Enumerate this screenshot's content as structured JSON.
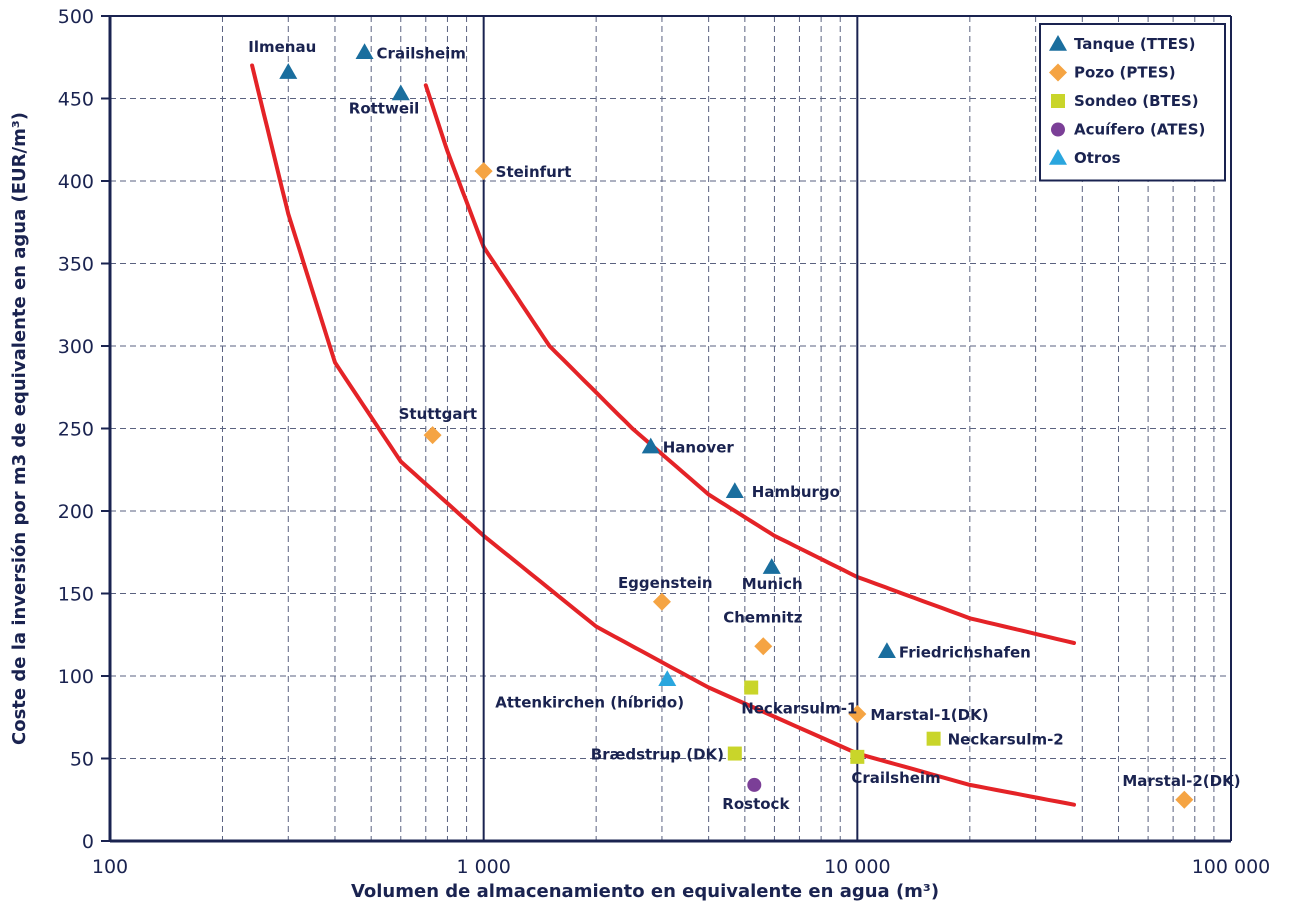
{
  "chart_data": {
    "type": "scatter",
    "title": "",
    "xlabel": "Volumen de almacenamiento en equivalente en agua (m³)",
    "ylabel": "Coste de la inversión por m3 de equivalente en agua (EUR/m³)",
    "xscale": "log",
    "xlim": [
      100,
      100000
    ],
    "ylim": [
      0,
      500
    ],
    "x_ticks": [
      100,
      1000,
      10000,
      100000
    ],
    "x_tick_labels": [
      "100",
      "1 000",
      "10 000",
      "100 000"
    ],
    "y_ticks": [
      0,
      50,
      100,
      150,
      200,
      250,
      300,
      350,
      400,
      450,
      500
    ],
    "y_tick_labels": [
      "0",
      "50",
      "100",
      "150",
      "200",
      "250",
      "300",
      "350",
      "400",
      "450",
      "500"
    ],
    "grid": true,
    "legend_position": "top-right",
    "series": [
      {
        "name": "Tanque (TTES)",
        "marker": "triangle",
        "color": "#1a6e9e",
        "points": [
          {
            "x": 300,
            "y": 466,
            "label": "Ilmenau"
          },
          {
            "x": 480,
            "y": 478,
            "label": "Crailsheim"
          },
          {
            "x": 600,
            "y": 453,
            "label": "Rottweil"
          },
          {
            "x": 2800,
            "y": 239,
            "label": "Hanover"
          },
          {
            "x": 4700,
            "y": 212,
            "label": "Hamburgo"
          },
          {
            "x": 5900,
            "y": 166,
            "label": "Munich"
          },
          {
            "x": 12000,
            "y": 115,
            "label": "Friedrichshafen"
          }
        ]
      },
      {
        "name": "Pozo (PTES)",
        "marker": "diamond",
        "color": "#f5a443",
        "points": [
          {
            "x": 1000,
            "y": 406,
            "label": "Steinfurt"
          },
          {
            "x": 730,
            "y": 246,
            "label": "Stuttgart"
          },
          {
            "x": 3000,
            "y": 145,
            "label": "Eggenstein"
          },
          {
            "x": 5600,
            "y": 118,
            "label": "Chemnitz"
          },
          {
            "x": 10000,
            "y": 77,
            "label": "Marstal-1(DK)"
          },
          {
            "x": 75000,
            "y": 25,
            "label": "Marstal-2(DK)"
          }
        ]
      },
      {
        "name": "Sondeo (BTES)",
        "marker": "square",
        "color": "#c9d52a",
        "points": [
          {
            "x": 5200,
            "y": 93,
            "label": "Neckarsulm-1"
          },
          {
            "x": 16000,
            "y": 62,
            "label": "Neckarsulm-2"
          },
          {
            "x": 4700,
            "y": 53,
            "label": "Brædstrup (DK)"
          },
          {
            "x": 10000,
            "y": 51,
            "label": "Crailsheim"
          }
        ]
      },
      {
        "name": "Acuífero (ATES)",
        "marker": "circle",
        "color": "#7b3f97",
        "points": [
          {
            "x": 5300,
            "y": 34,
            "label": "Rostock"
          }
        ]
      },
      {
        "name": "Otros",
        "marker": "triangle",
        "color": "#2aa6de",
        "points": [
          {
            "x": 3100,
            "y": 98,
            "label": "Attenkirchen (híbrido)"
          }
        ]
      }
    ],
    "curves": [
      {
        "color": "#e42327",
        "points": [
          [
            240,
            470
          ],
          [
            300,
            380
          ],
          [
            400,
            290
          ],
          [
            600,
            230
          ],
          [
            1000,
            185
          ],
          [
            2000,
            130
          ],
          [
            4000,
            93
          ],
          [
            10000,
            53
          ],
          [
            20000,
            34
          ],
          [
            38000,
            22
          ]
        ]
      },
      {
        "color": "#e42327",
        "points": [
          [
            700,
            458
          ],
          [
            800,
            418
          ],
          [
            1000,
            360
          ],
          [
            1500,
            300
          ],
          [
            2500,
            250
          ],
          [
            4000,
            210
          ],
          [
            6000,
            185
          ],
          [
            10000,
            160
          ],
          [
            20000,
            135
          ],
          [
            38000,
            120
          ]
        ]
      }
    ]
  }
}
